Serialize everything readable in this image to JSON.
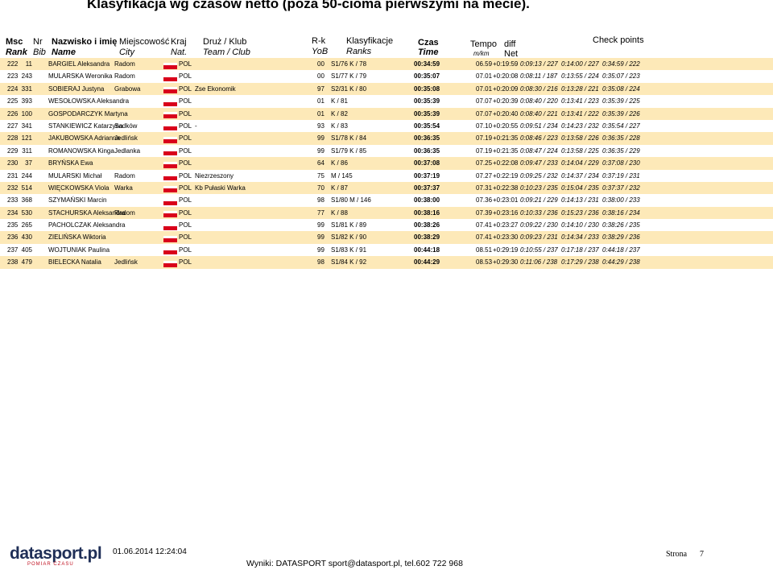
{
  "title": "Klasyfikacja wg czasów netto (poza 50-cioma pierwszymi na mecie).",
  "headers": {
    "msc": "Msc",
    "rank": "Rank",
    "nr": "Nr",
    "bib": "Bib",
    "nazwisko": "Nazwisko i imię",
    "name": "Name",
    "miejscowosc": "Miejscowość",
    "city": "City",
    "kraj": "Kraj",
    "nat": "Nat.",
    "druz": "Druż / Klub",
    "team": "Team / Club",
    "rk": "R-k",
    "yob": "YoB",
    "klasyfikacje": "Klasyfikacje",
    "ranks": "Ranks",
    "czas": "Czas",
    "time": "Time",
    "tempo": "Tempo",
    "mkm": "m/km",
    "diff": "diff",
    "net": "Net",
    "checkpoints": "Check points"
  },
  "rows": [
    {
      "rank": "222",
      "bib": "11",
      "name": "BARGIEL Aleksandra",
      "city": "Radom",
      "nat": "POL",
      "team": "",
      "yob": "00",
      "ranks": "S1/76    K / 78",
      "time": "00:34:59",
      "tempo": "06.59",
      "diff": "+0:19:59",
      "cp1": "0:09:13 / 227",
      "cp2": "0:14:00 / 227",
      "cp3": "0:34:59 / 222"
    },
    {
      "rank": "223",
      "bib": "243",
      "name": "MULARSKA Weronika",
      "city": "Radom",
      "nat": "POL",
      "team": "",
      "yob": "00",
      "ranks": "S1/77    K / 79",
      "time": "00:35:07",
      "tempo": "07.01",
      "diff": "+0:20:08",
      "cp1": "0:08:11 / 187",
      "cp2": "0:13:55 / 224",
      "cp3": "0:35:07 / 223"
    },
    {
      "rank": "224",
      "bib": "331",
      "name": "SOBIERAJ Justyna",
      "city": "Grabowa",
      "nat": "POL",
      "team": "Zse Ekonomik",
      "yob": "97",
      "ranks": "S2/31    K / 80",
      "time": "00:35:08",
      "tempo": "07.01",
      "diff": "+0:20:09",
      "cp1": "0:08:30 / 216",
      "cp2": "0:13:28 / 221",
      "cp3": "0:35:08 / 224"
    },
    {
      "rank": "225",
      "bib": "393",
      "name": "WESOŁOWSKA Aleksandra",
      "city": "",
      "nat": "POL",
      "team": "",
      "yob": "01",
      "ranks": "K / 81",
      "time": "00:35:39",
      "tempo": "07.07",
      "diff": "+0:20:39",
      "cp1": "0:08:40 / 220",
      "cp2": "0:13:41 / 223",
      "cp3": "0:35:39 / 225"
    },
    {
      "rank": "226",
      "bib": "100",
      "name": "GOSPODARCZYK Martyna",
      "city": "",
      "nat": "POL",
      "team": "",
      "yob": "01",
      "ranks": "K / 82",
      "time": "00:35:39",
      "tempo": "07.07",
      "diff": "+0:20:40",
      "cp1": "0:08:40 / 221",
      "cp2": "0:13:41 / 222",
      "cp3": "0:35:39 / 226"
    },
    {
      "rank": "227",
      "bib": "341",
      "name": "STANKIEWICZ Katarzyna",
      "city": "Sadków",
      "nat": "POL",
      "team": "-",
      "yob": "93",
      "ranks": "K / 83",
      "time": "00:35:54",
      "tempo": "07.10",
      "diff": "+0:20:55",
      "cp1": "0:09:51 / 234",
      "cp2": "0:14:23 / 232",
      "cp3": "0:35:54 / 227"
    },
    {
      "rank": "228",
      "bib": "121",
      "name": "JAKUBOWSKA Adrianna",
      "city": "Jedlińsk",
      "nat": "POL",
      "team": "",
      "yob": "99",
      "ranks": "S1/78    K / 84",
      "time": "00:36:35",
      "tempo": "07.19",
      "diff": "+0:21:35",
      "cp1": "0:08:46 / 223",
      "cp2": "0:13:58 / 226",
      "cp3": "0:36:35 / 228"
    },
    {
      "rank": "229",
      "bib": "311",
      "name": "ROMANOWSKA Kinga",
      "city": "Jedlanka",
      "nat": "POL",
      "team": "",
      "yob": "99",
      "ranks": "S1/79    K / 85",
      "time": "00:36:35",
      "tempo": "07.19",
      "diff": "+0:21:35",
      "cp1": "0:08:47 / 224",
      "cp2": "0:13:58 / 225",
      "cp3": "0:36:35 / 229"
    },
    {
      "rank": "230",
      "bib": "37",
      "name": "BRYŃSKA Ewa",
      "city": "",
      "nat": "POL",
      "team": "",
      "yob": "64",
      "ranks": "K / 86",
      "time": "00:37:08",
      "tempo": "07.25",
      "diff": "+0:22:08",
      "cp1": "0:09:47 / 233",
      "cp2": "0:14:04 / 229",
      "cp3": "0:37:08 / 230"
    },
    {
      "rank": "231",
      "bib": "244",
      "name": "MULARSKI Michał",
      "city": "Radom",
      "nat": "POL",
      "team": "Niezrzeszony",
      "yob": "75",
      "ranks": "M / 145",
      "time": "00:37:19",
      "tempo": "07.27",
      "diff": "+0:22:19",
      "cp1": "0:09:25 / 232",
      "cp2": "0:14:37 / 234",
      "cp3": "0:37:19 / 231"
    },
    {
      "rank": "232",
      "bib": "514",
      "name": "WIĘCKOWSKA Viola",
      "city": "Warka",
      "nat": "POL",
      "team": "Kb Pułaski Warka",
      "yob": "70",
      "ranks": "K / 87",
      "time": "00:37:37",
      "tempo": "07.31",
      "diff": "+0:22:38",
      "cp1": "0:10:23 / 235",
      "cp2": "0:15:04 / 235",
      "cp3": "0:37:37 / 232"
    },
    {
      "rank": "233",
      "bib": "368",
      "name": "SZYMAŃSKI Marcin",
      "city": "",
      "nat": "POL",
      "team": "",
      "yob": "98",
      "ranks": "S1/80    M / 146",
      "time": "00:38:00",
      "tempo": "07.36",
      "diff": "+0:23:01",
      "cp1": "0:09:21 / 229",
      "cp2": "0:14:13 / 231",
      "cp3": "0:38:00 / 233"
    },
    {
      "rank": "234",
      "bib": "530",
      "name": "STACHURSKA Aleksandra",
      "city": "Radom",
      "nat": "POL",
      "team": "",
      "yob": "77",
      "ranks": "K / 88",
      "time": "00:38:16",
      "tempo": "07.39",
      "diff": "+0:23:16",
      "cp1": "0:10:33 / 236",
      "cp2": "0:15:23 / 236",
      "cp3": "0:38:16 / 234"
    },
    {
      "rank": "235",
      "bib": "265",
      "name": "PACHOLCZAK Aleksandra",
      "city": "",
      "nat": "POL",
      "team": "",
      "yob": "99",
      "ranks": "S1/81    K / 89",
      "time": "00:38:26",
      "tempo": "07.41",
      "diff": "+0:23:27",
      "cp1": "0:09:22 / 230",
      "cp2": "0:14:10 / 230",
      "cp3": "0:38:26 / 235"
    },
    {
      "rank": "236",
      "bib": "430",
      "name": "ZIELIŃSKA Wiktoria",
      "city": "",
      "nat": "POL",
      "team": "",
      "yob": "99",
      "ranks": "S1/82    K / 90",
      "time": "00:38:29",
      "tempo": "07.41",
      "diff": "+0:23:30",
      "cp1": "0:09:23 / 231",
      "cp2": "0:14:34 / 233",
      "cp3": "0:38:29 / 236"
    },
    {
      "rank": "237",
      "bib": "405",
      "name": "WOJTUNIAK Paulina",
      "city": "",
      "nat": "POL",
      "team": "",
      "yob": "99",
      "ranks": "S1/83    K / 91",
      "time": "00:44:18",
      "tempo": "08.51",
      "diff": "+0:29:19",
      "cp1": "0:10:55 / 237",
      "cp2": "0:17:18 / 237",
      "cp3": "0:44:18 / 237"
    },
    {
      "rank": "238",
      "bib": "479",
      "name": "BIELECKA Natalia",
      "city": "Jedlińsk",
      "nat": "POL",
      "team": "",
      "yob": "98",
      "ranks": "S1/84    K / 92",
      "time": "00:44:29",
      "tempo": "08.53",
      "diff": "+0:29:30",
      "cp1": "0:11:06 / 238",
      "cp2": "0:17:29 / 238",
      "cp3": "0:44:29 / 238"
    }
  ],
  "footer": {
    "logo": "datasport.pl",
    "logo_sub": "POMIAR CZASU",
    "date": "01.06.2014 12:24:04",
    "page_label": "Strona",
    "page_number": "7",
    "results_line": "Wyniki: DATASPORT sport@datasport.pl, tel.602 722 968"
  },
  "colors": {
    "row_shade": "#fde9b8",
    "flag_red": "#d9001b",
    "logo": "#1f2f57"
  }
}
